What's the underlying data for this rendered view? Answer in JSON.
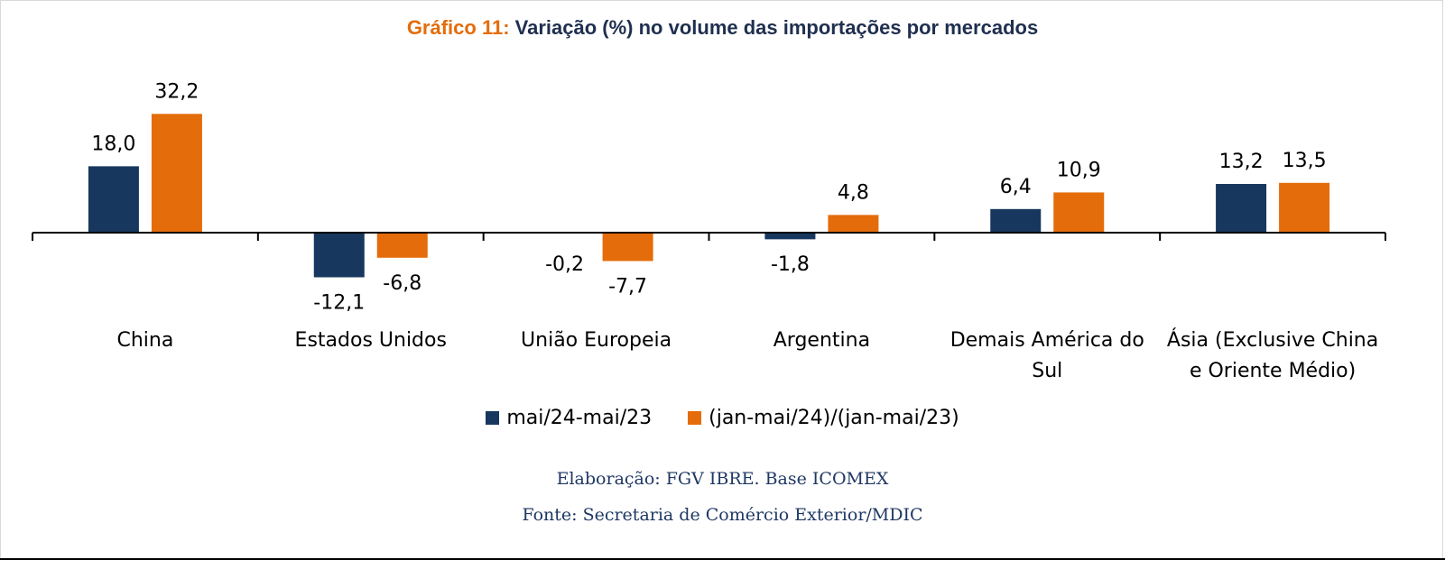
{
  "chart_data": {
    "type": "bar",
    "title_prefix": "Gráfico 11:",
    "title": "Variação (%) no volume das importações por mercados",
    "categories": [
      [
        "China"
      ],
      [
        "Estados Unidos"
      ],
      [
        "União Europeia"
      ],
      [
        "Argentina"
      ],
      [
        "Demais América do",
        "Sul"
      ],
      [
        "Ásia (Exclusive China",
        "e Oriente Médio)"
      ]
    ],
    "series": [
      {
        "name": "mai/24-mai/23",
        "color": "#17375e",
        "values": [
          18.0,
          -12.1,
          -0.2,
          -1.8,
          6.4,
          13.2
        ],
        "labels": [
          "18,0",
          "-12,1",
          "-0,2",
          "-1,8",
          "6,4",
          "13,2"
        ]
      },
      {
        "name": "(jan-mai/24)/(jan-mai/23)",
        "color": "#e46c0a",
        "values": [
          32.2,
          -6.8,
          -7.7,
          4.8,
          10.9,
          13.5
        ],
        "labels": [
          "32,2",
          "-6,8",
          "-7,7",
          "4,8",
          "10,9",
          "13,5"
        ]
      }
    ],
    "legend_position": "bottom",
    "grid": false
  },
  "footer": {
    "line1": "Elaboração: FGV IBRE. Base ICOMEX",
    "line2": "Fonte: Secretaria de Comércio Exterior/MDIC"
  }
}
